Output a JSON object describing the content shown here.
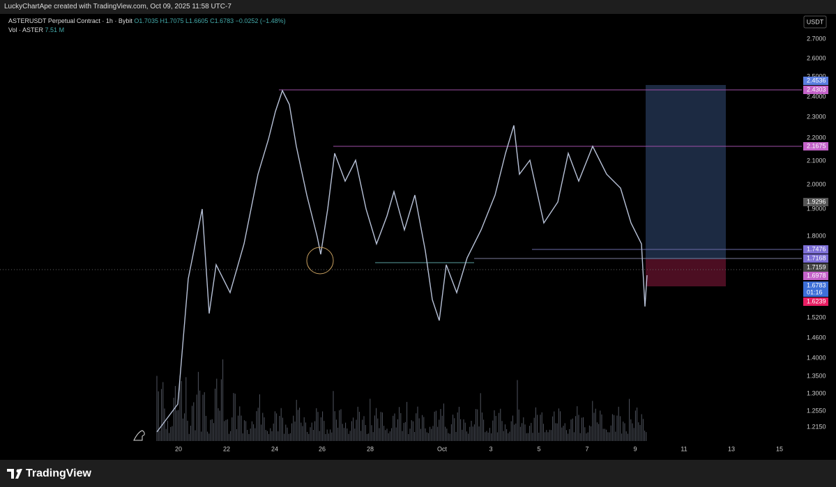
{
  "header": {
    "text": "LuckyChartApe created with TradingView.com, Oct 09, 2025 11:58 UTC-7"
  },
  "legend": {
    "symbol": "ASTERUSDT Perpetual Contract · 1h · Bybit",
    "open": "O1.7035",
    "high": "H1.7075",
    "low": "L1.6605",
    "close": "C1.6783",
    "change": "−0.0252 (−1.48%)",
    "volume_label": "Vol · ASTER",
    "volume_value": "7.51 M"
  },
  "price_axis": {
    "currency": "USDT",
    "labels": [
      "2.7000",
      "2.6000",
      "2.5000",
      "2.4000",
      "2.3000",
      "2.2000",
      "2.1000",
      "2.0000",
      "1.9000",
      "1.8000",
      "1.5200",
      "1.4600",
      "1.4000",
      "1.3500",
      "1.3000",
      "1.2550",
      "1.2150"
    ]
  },
  "price_tags": [
    {
      "text": "2.4536",
      "color": "#5b7ee0"
    },
    {
      "text": "2.4303",
      "color": "#c462c9"
    },
    {
      "text": "2.1675",
      "color": "#c462c9"
    },
    {
      "text": "1.9296",
      "color": "#555"
    },
    {
      "text": "1.7476",
      "color": "#7d6fd6"
    },
    {
      "text": "1.7168",
      "color": "#7d6fd6"
    },
    {
      "text": "1.7159",
      "color": "#444"
    },
    {
      "text": "1.6978",
      "color": "#c462c9"
    },
    {
      "text": "1.6783",
      "color": "#3d6fd8"
    },
    {
      "text": "01:16",
      "color": "#3d6fd8"
    },
    {
      "text": "1.6239",
      "color": "#e91e63"
    }
  ],
  "time_axis": [
    "20",
    "22",
    "24",
    "26",
    "28",
    "Oct",
    "3",
    "5",
    "7",
    "9",
    "11",
    "13",
    "15"
  ],
  "footer": {
    "brand": "TradingView"
  }
}
